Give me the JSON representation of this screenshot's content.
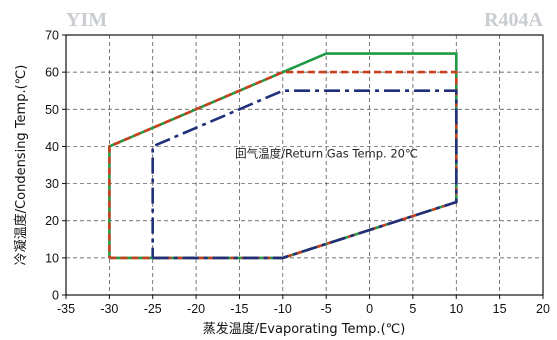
{
  "header": {
    "brand_left": "YIM",
    "brand_right": "R404A"
  },
  "chart_data": {
    "type": "line",
    "title": "",
    "xlabel": "蒸发温度/Evaporating Temp.(℃)",
    "ylabel": "冷凝温度/Condensing Temp.(℃)",
    "xlim": [
      -35,
      20
    ],
    "ylim": [
      0,
      70
    ],
    "xticks": [
      -35,
      -30,
      -25,
      -20,
      -15,
      -10,
      -5,
      0,
      5,
      10,
      15,
      20
    ],
    "yticks": [
      0,
      10,
      20,
      30,
      40,
      50,
      60,
      70
    ],
    "grid": true,
    "legend": "none",
    "annotations": [
      {
        "text": "回气温度/Return Gas Temp. 20℃",
        "x": -15.5,
        "y": 37
      }
    ],
    "series": [
      {
        "color": "#1f9a45",
        "style": "solid",
        "points": [
          [
            -30,
            10
          ],
          [
            -10,
            10
          ],
          [
            10,
            25
          ],
          [
            10,
            65
          ],
          [
            -5,
            65
          ],
          [
            -30,
            40
          ],
          [
            -30,
            10
          ]
        ]
      },
      {
        "color": "#c8401e",
        "style": "dashed",
        "points": [
          [
            -30,
            10
          ],
          [
            -10,
            10
          ],
          [
            10,
            25
          ],
          [
            10,
            60
          ],
          [
            -10,
            60
          ],
          [
            -30,
            40
          ],
          [
            -30,
            10
          ]
        ]
      },
      {
        "color": "#1f2f7a",
        "style": "dashdot",
        "points": [
          [
            -25,
            10
          ],
          [
            -10,
            10
          ],
          [
            10,
            25
          ],
          [
            10,
            55
          ],
          [
            -10,
            55
          ],
          [
            -25,
            40
          ],
          [
            -25,
            10
          ]
        ]
      }
    ]
  }
}
